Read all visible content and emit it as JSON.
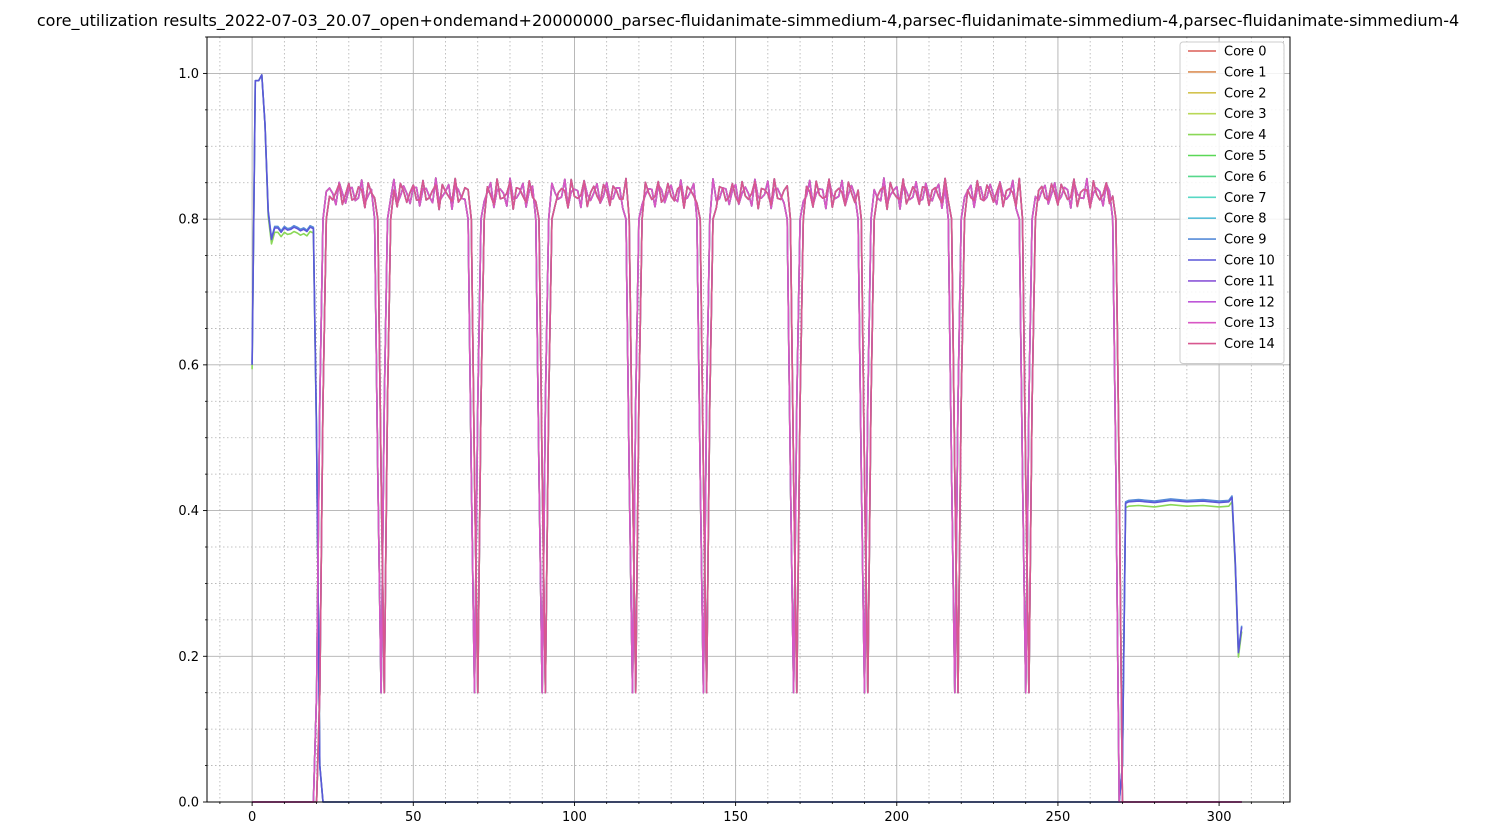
{
  "chart_data": {
    "type": "line",
    "title": "core_utilization results_2022-07-03_20.07_open+ondemand+20000000_parsec-fluidanimate-simmedium-4,parsec-fluidanimate-simmedium-4,parsec-fluidanimate-simmedium-4",
    "xlabel": "",
    "ylabel": "",
    "xlim": [
      -14,
      322
    ],
    "ylim": [
      0,
      1.05
    ],
    "x_ticks": [
      0,
      50,
      100,
      150,
      200,
      250,
      300
    ],
    "x_tick_labels": [
      "0",
      "50",
      "100",
      "150",
      "200",
      "250",
      "300"
    ],
    "y_ticks": [
      0.0,
      0.2,
      0.4,
      0.6,
      0.8,
      1.0
    ],
    "y_tick_labels": [
      "0.0",
      "0.2",
      "0.4",
      "0.6",
      "0.8",
      "1.0"
    ],
    "grid": {
      "major": true,
      "minor": true
    },
    "legend_position": "top-right",
    "x_max": 307,
    "series": [
      {
        "name": "Core 0",
        "color": "#db5f57",
        "kind": "job",
        "offset": 0
      },
      {
        "name": "Core 1",
        "color": "#db8f57",
        "kind": "job",
        "offset": 1
      },
      {
        "name": "Core 2",
        "color": "#d3c34f",
        "kind": "job",
        "offset": 0
      },
      {
        "name": "Core 3",
        "color": "#b9d857",
        "kind": "job",
        "offset": 1
      },
      {
        "name": "Core 4",
        "color": "#8ad857",
        "kind": "main",
        "offset": 0
      },
      {
        "name": "Core 5",
        "color": "#5ad857",
        "kind": "job",
        "offset": 0
      },
      {
        "name": "Core 6",
        "color": "#57d88b",
        "kind": "job",
        "offset": 1
      },
      {
        "name": "Core 7",
        "color": "#57d8c4",
        "kind": "job",
        "offset": 0
      },
      {
        "name": "Core 8",
        "color": "#57bed8",
        "kind": "job",
        "offset": 1
      },
      {
        "name": "Core 9",
        "color": "#578cd8",
        "kind": "main",
        "offset": 0
      },
      {
        "name": "Core 10",
        "color": "#5a57d8",
        "kind": "main",
        "offset": 0
      },
      {
        "name": "Core 11",
        "color": "#8c57d8",
        "kind": "job",
        "offset": 0
      },
      {
        "name": "Core 12",
        "color": "#be57d8",
        "kind": "job",
        "offset": 1
      },
      {
        "name": "Core 13",
        "color": "#d857c4",
        "kind": "job",
        "offset": 0
      },
      {
        "name": "Core 14",
        "color": "#d8578f",
        "kind": "job",
        "offset": 1
      }
    ],
    "main_profile": [
      [
        0,
        0.6
      ],
      [
        1,
        0.99
      ],
      [
        2,
        0.99
      ],
      [
        3,
        0.998
      ],
      [
        4,
        0.93
      ],
      [
        5,
        0.81
      ],
      [
        6,
        0.772
      ],
      [
        7,
        0.788
      ],
      [
        8,
        0.788
      ],
      [
        9,
        0.782
      ],
      [
        10,
        0.788
      ],
      [
        11,
        0.785
      ],
      [
        12,
        0.786
      ],
      [
        13,
        0.789
      ],
      [
        14,
        0.787
      ],
      [
        15,
        0.784
      ],
      [
        16,
        0.786
      ],
      [
        17,
        0.783
      ],
      [
        18,
        0.789
      ],
      [
        19,
        0.787
      ],
      [
        20,
        0.5
      ],
      [
        21,
        0.05
      ],
      [
        22,
        0
      ],
      [
        269,
        0
      ],
      [
        270,
        0.05
      ],
      [
        271,
        0.41
      ],
      [
        272,
        0.412
      ],
      [
        275,
        0.413
      ],
      [
        280,
        0.411
      ],
      [
        285,
        0.414
      ],
      [
        290,
        0.412
      ],
      [
        295,
        0.413
      ],
      [
        300,
        0.411
      ],
      [
        303,
        0.412
      ],
      [
        304,
        0.418
      ],
      [
        305,
        0.33
      ],
      [
        306,
        0.205
      ],
      [
        307,
        0.24
      ]
    ],
    "job_segments": [
      [
        20,
        39
      ],
      [
        40,
        68
      ],
      [
        69,
        89
      ],
      [
        90,
        117
      ],
      [
        118,
        139
      ],
      [
        140,
        167
      ],
      [
        168,
        189
      ],
      [
        190,
        217
      ],
      [
        218,
        239
      ],
      [
        240,
        268
      ]
    ],
    "job_plateau_level": 0.835
  }
}
